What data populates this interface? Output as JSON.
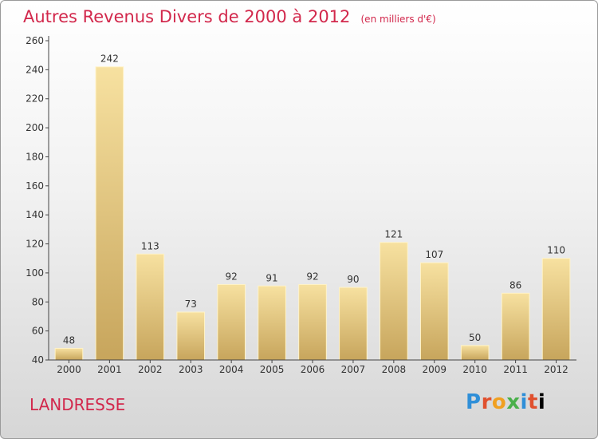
{
  "title": "Autres Revenus Divers de 2000 à 2012",
  "unit": "(en milliers d'€)",
  "commune": "LANDRESSE",
  "logo_text": "Proxiti",
  "colors": {
    "title": "#d2284c",
    "bar_light": "#f5dc95",
    "bar_dark": "#c9a95e",
    "axis": "#444444"
  },
  "chart_data": {
    "type": "bar",
    "title": "Autres Revenus Divers de 2000 à 2012",
    "categories": [
      "2000",
      "2001",
      "2002",
      "2003",
      "2004",
      "2005",
      "2006",
      "2007",
      "2008",
      "2009",
      "2010",
      "2011",
      "2012"
    ],
    "values": [
      48,
      242,
      113,
      73,
      92,
      91,
      92,
      90,
      121,
      107,
      50,
      86,
      110
    ],
    "ylim": [
      40,
      260
    ],
    "yticks": [
      40,
      60,
      80,
      100,
      120,
      140,
      160,
      180,
      200,
      220,
      240,
      260
    ],
    "xlabel": "",
    "ylabel": "",
    "grid": false
  }
}
